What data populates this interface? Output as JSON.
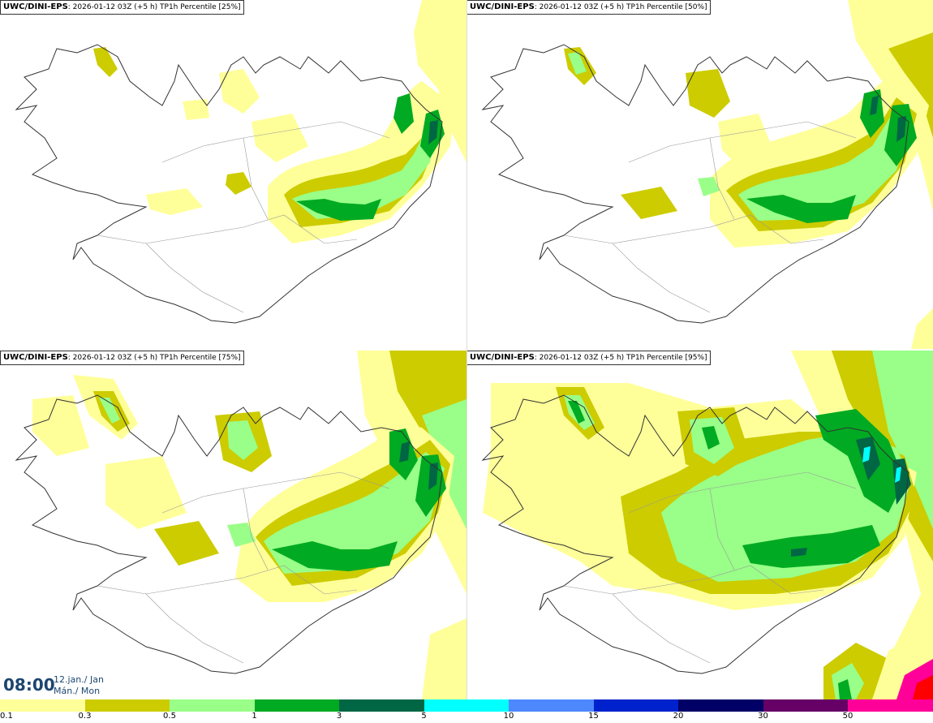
{
  "panels": [
    {
      "model": "UWC/DINI-EPS",
      "info": ": 2026-01-12 03Z (+5 h) TP1h Percentile [25%]"
    },
    {
      "model": "UWC/DINI-EPS",
      "info": ": 2026-01-12 03Z (+5 h) TP1h Percentile [50%]"
    },
    {
      "model": "UWC/DINI-EPS",
      "info": ": 2026-01-12 03Z (+5 h) TP1h Percentile [75%]"
    },
    {
      "model": "UWC/DINI-EPS",
      "info": ": 2026-01-12 03Z (+5 h) TP1h Percentile [95%]"
    }
  ],
  "valid_time": "08:00",
  "date_line1": "12.jan./ Jan",
  "date_line2": "Mán./ Mon",
  "colorbar": {
    "ticks": [
      "0.1",
      "0.3",
      "0.5",
      "1",
      "3",
      "5",
      "10",
      "15",
      "20",
      "30",
      "50"
    ],
    "colors": [
      "#ffff99",
      "#cccc00",
      "#99ff88",
      "#00aa22",
      "#006644",
      "#00ffff",
      "#4d88ff",
      "#0022cc",
      "#000066",
      "#660066",
      "#ff0099",
      "#ff0000"
    ]
  }
}
